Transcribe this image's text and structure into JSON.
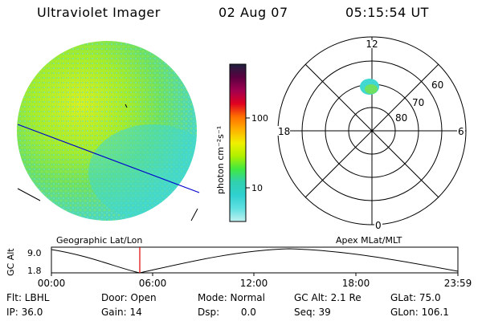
{
  "header": {
    "instrument": "Ultraviolet Imager",
    "date": "02 Aug 07",
    "time": "05:15:54 UT"
  },
  "colorbar": {
    "unit_label": "photon cm⁻²s⁻¹",
    "ticks": [
      "100",
      "10"
    ],
    "colors": [
      "#202040",
      "#5a0040",
      "#a00050",
      "#e00020",
      "#ff7000",
      "#ffb000",
      "#f0f000",
      "#b0f000",
      "#40e840",
      "#30d0b0",
      "#30d0d0",
      "#60e0e0",
      "#c0f0f0"
    ]
  },
  "polar": {
    "mlt_labels": {
      "top": "12",
      "left": "18",
      "right": "6",
      "bottom": "0"
    },
    "lat_labels": [
      "60",
      "70",
      "80"
    ]
  },
  "timeline": {
    "y_label": "GC Alt",
    "y_max": "9.0",
    "y_min": "1.8",
    "left_title": "Geographic Lat/Lon",
    "right_title": "Apex MLat/MLT",
    "x_ticks": [
      "00:00",
      "06:00",
      "12:00",
      "18:00",
      "23:59"
    ],
    "marker_color": "#e00000"
  },
  "info": {
    "filter": "Flt: LBHL",
    "door": "Door: Open",
    "mode": "Mode: Normal",
    "gc_alt": "GC Alt: 2.1 Re",
    "glat": "GLat: 75.0",
    "ip": "IP: 36.0",
    "gain": "Gain: 14",
    "dsp": "Dsp:       0.0",
    "seq": "Seq: 39",
    "glon": "GLon: 106.1"
  }
}
